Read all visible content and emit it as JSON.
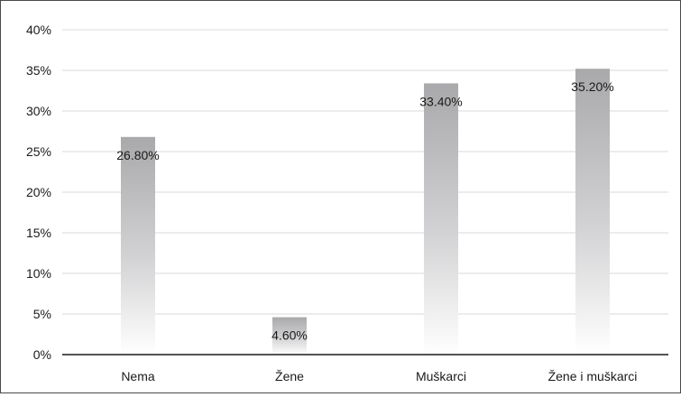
{
  "chart_data": {
    "type": "bar",
    "title": "",
    "xlabel": "",
    "ylabel": "",
    "categories": [
      "Nema",
      "Žene",
      "Muškarci",
      "Žene i muškarci"
    ],
    "values": [
      26.8,
      4.6,
      33.4,
      35.2
    ],
    "value_labels": [
      "26.80%",
      "4.60%",
      "33.40%",
      "35.20%"
    ],
    "y_ticks": [
      0,
      5,
      10,
      15,
      20,
      25,
      30,
      35,
      40
    ],
    "y_tick_labels": [
      "0%",
      "5%",
      "10%",
      "15%",
      "20%",
      "25%",
      "30%",
      "35%",
      "40%"
    ],
    "ylim": [
      0,
      40
    ],
    "grid": true,
    "legend": "none",
    "bar_color_top": "#a9a9ab",
    "bar_color_bottom": "#ffffff",
    "grid_color": "#d9d9d9",
    "axis_color": "#1a1a1a"
  }
}
